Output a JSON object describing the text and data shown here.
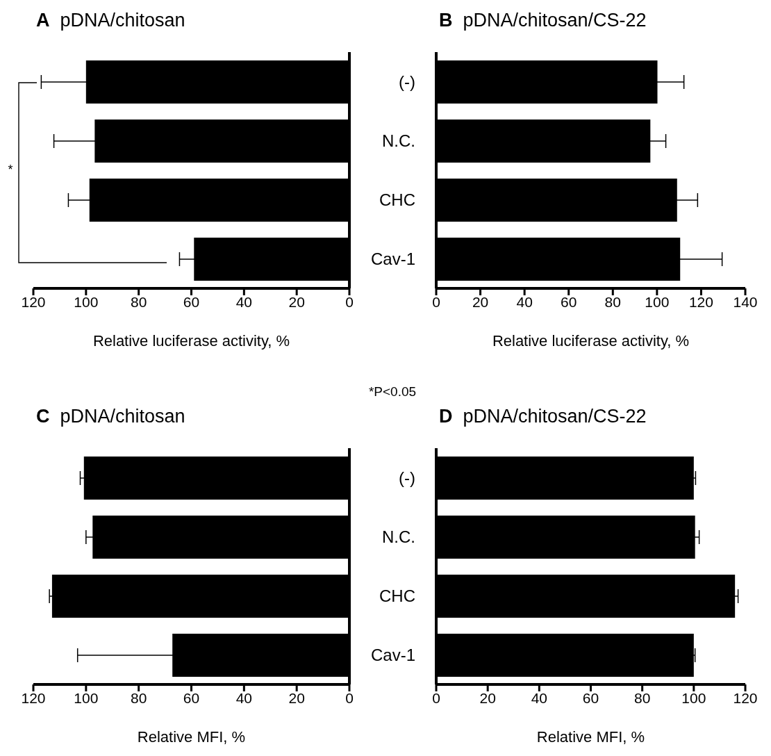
{
  "chart_data": [
    {
      "type": "bar",
      "orientation": "horizontal",
      "title": "A pDNA/chitosan",
      "categories": [
        null,
        null,
        null,
        null
      ],
      "values": [
        100,
        96.7,
        98.7,
        59
      ],
      "errors": [
        17,
        15.5,
        8,
        5.5
      ],
      "color": "#000000",
      "xlim": [
        120,
        0
      ],
      "xticks": [
        120,
        100,
        80,
        60,
        40,
        20,
        0
      ],
      "xlabel": "Relative luciferase activity, %",
      "tick_labels": "x",
      "annotations": [
        "*",
        "*P<0.05"
      ]
    },
    {
      "type": "bar",
      "orientation": "horizontal",
      "title": "B pDNA/chitosan/CS-22",
      "categories": [
        "(-)",
        "N.C.",
        "CHC",
        "Cav-1"
      ],
      "values": [
        100.2,
        97,
        109.1,
        110.5
      ],
      "errors": [
        12,
        7,
        9.3,
        19
      ],
      "color": "#000000",
      "xlim": [
        0,
        140
      ],
      "xticks": [
        0,
        20,
        40,
        60,
        80,
        100,
        120,
        140
      ],
      "xlabel": "Relative luciferase activity, %"
    },
    {
      "type": "bar",
      "orientation": "horizontal",
      "title": "C pDNA/chitosan",
      "categories": [
        null,
        null,
        null,
        null
      ],
      "values": [
        100.8,
        97.5,
        112.9,
        67.2
      ],
      "errors": [
        1.4,
        2.5,
        1,
        36
      ],
      "color": "#000000",
      "xlim": [
        120,
        0
      ],
      "xticks": [
        120,
        100,
        80,
        60,
        40,
        20,
        0
      ],
      "xlabel": "Relative MFI, %",
      "tick_labels": "x"
    },
    {
      "type": "bar",
      "orientation": "horizontal",
      "title": "D pDNA/chitosan/CS-22",
      "categories": [
        "(-)",
        "N.C.",
        "CHC",
        "Cav-1"
      ],
      "values": [
        100,
        100.5,
        116,
        100
      ],
      "errors": [
        0.7,
        1.6,
        1.2,
        0.5
      ],
      "color": "#000000",
      "xlim": [
        0,
        120
      ],
      "xticks": [
        0,
        20,
        40,
        60,
        80,
        100,
        120
      ],
      "xlabel": "Relative MFI, %"
    }
  ]
}
